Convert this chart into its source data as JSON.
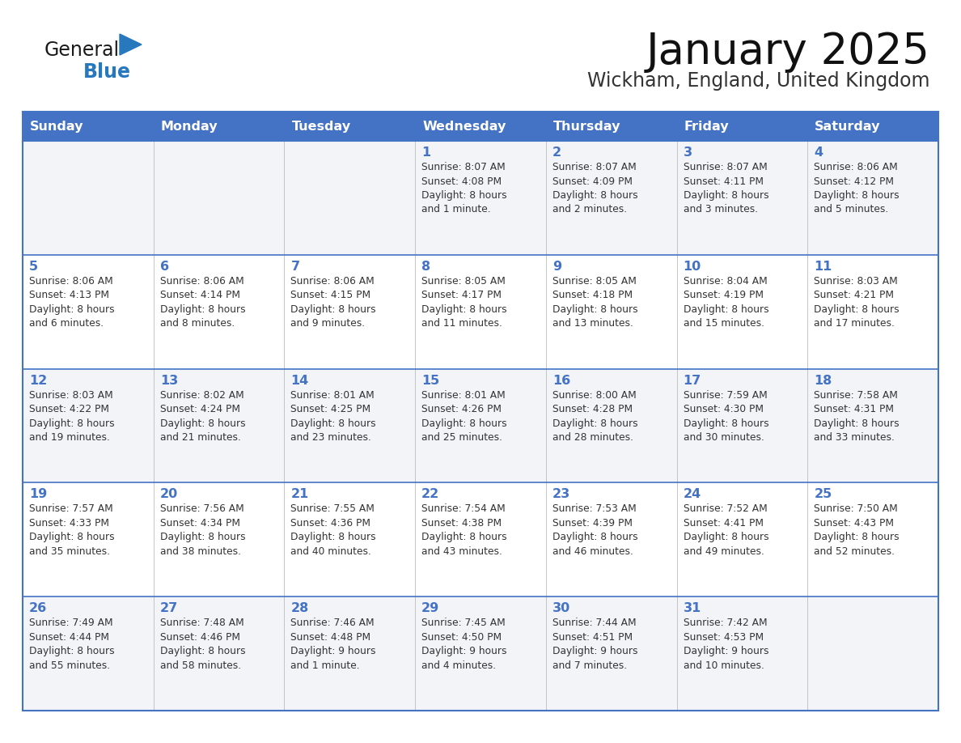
{
  "title": "January 2025",
  "subtitle": "Wickham, England, United Kingdom",
  "days_of_week": [
    "Sunday",
    "Monday",
    "Tuesday",
    "Wednesday",
    "Thursday",
    "Friday",
    "Saturday"
  ],
  "header_bg": "#4472C4",
  "header_text": "#FFFFFF",
  "cell_bg_light": "#F2F4F8",
  "cell_bg_white": "#FFFFFF",
  "day_number_color": "#4472C4",
  "cell_text_color": "#333333",
  "border_color": "#4472C4",
  "row_line_color": "#4472C4",
  "title_color": "#111111",
  "subtitle_color": "#333333",
  "logo_general_color": "#1a1a1a",
  "logo_blue_color": "#2878BE",
  "weeks": [
    [
      {
        "day": null,
        "info": null
      },
      {
        "day": null,
        "info": null
      },
      {
        "day": null,
        "info": null
      },
      {
        "day": 1,
        "info": "Sunrise: 8:07 AM\nSunset: 4:08 PM\nDaylight: 8 hours\nand 1 minute."
      },
      {
        "day": 2,
        "info": "Sunrise: 8:07 AM\nSunset: 4:09 PM\nDaylight: 8 hours\nand 2 minutes."
      },
      {
        "day": 3,
        "info": "Sunrise: 8:07 AM\nSunset: 4:11 PM\nDaylight: 8 hours\nand 3 minutes."
      },
      {
        "day": 4,
        "info": "Sunrise: 8:06 AM\nSunset: 4:12 PM\nDaylight: 8 hours\nand 5 minutes."
      }
    ],
    [
      {
        "day": 5,
        "info": "Sunrise: 8:06 AM\nSunset: 4:13 PM\nDaylight: 8 hours\nand 6 minutes."
      },
      {
        "day": 6,
        "info": "Sunrise: 8:06 AM\nSunset: 4:14 PM\nDaylight: 8 hours\nand 8 minutes."
      },
      {
        "day": 7,
        "info": "Sunrise: 8:06 AM\nSunset: 4:15 PM\nDaylight: 8 hours\nand 9 minutes."
      },
      {
        "day": 8,
        "info": "Sunrise: 8:05 AM\nSunset: 4:17 PM\nDaylight: 8 hours\nand 11 minutes."
      },
      {
        "day": 9,
        "info": "Sunrise: 8:05 AM\nSunset: 4:18 PM\nDaylight: 8 hours\nand 13 minutes."
      },
      {
        "day": 10,
        "info": "Sunrise: 8:04 AM\nSunset: 4:19 PM\nDaylight: 8 hours\nand 15 minutes."
      },
      {
        "day": 11,
        "info": "Sunrise: 8:03 AM\nSunset: 4:21 PM\nDaylight: 8 hours\nand 17 minutes."
      }
    ],
    [
      {
        "day": 12,
        "info": "Sunrise: 8:03 AM\nSunset: 4:22 PM\nDaylight: 8 hours\nand 19 minutes."
      },
      {
        "day": 13,
        "info": "Sunrise: 8:02 AM\nSunset: 4:24 PM\nDaylight: 8 hours\nand 21 minutes."
      },
      {
        "day": 14,
        "info": "Sunrise: 8:01 AM\nSunset: 4:25 PM\nDaylight: 8 hours\nand 23 minutes."
      },
      {
        "day": 15,
        "info": "Sunrise: 8:01 AM\nSunset: 4:26 PM\nDaylight: 8 hours\nand 25 minutes."
      },
      {
        "day": 16,
        "info": "Sunrise: 8:00 AM\nSunset: 4:28 PM\nDaylight: 8 hours\nand 28 minutes."
      },
      {
        "day": 17,
        "info": "Sunrise: 7:59 AM\nSunset: 4:30 PM\nDaylight: 8 hours\nand 30 minutes."
      },
      {
        "day": 18,
        "info": "Sunrise: 7:58 AM\nSunset: 4:31 PM\nDaylight: 8 hours\nand 33 minutes."
      }
    ],
    [
      {
        "day": 19,
        "info": "Sunrise: 7:57 AM\nSunset: 4:33 PM\nDaylight: 8 hours\nand 35 minutes."
      },
      {
        "day": 20,
        "info": "Sunrise: 7:56 AM\nSunset: 4:34 PM\nDaylight: 8 hours\nand 38 minutes."
      },
      {
        "day": 21,
        "info": "Sunrise: 7:55 AM\nSunset: 4:36 PM\nDaylight: 8 hours\nand 40 minutes."
      },
      {
        "day": 22,
        "info": "Sunrise: 7:54 AM\nSunset: 4:38 PM\nDaylight: 8 hours\nand 43 minutes."
      },
      {
        "day": 23,
        "info": "Sunrise: 7:53 AM\nSunset: 4:39 PM\nDaylight: 8 hours\nand 46 minutes."
      },
      {
        "day": 24,
        "info": "Sunrise: 7:52 AM\nSunset: 4:41 PM\nDaylight: 8 hours\nand 49 minutes."
      },
      {
        "day": 25,
        "info": "Sunrise: 7:50 AM\nSunset: 4:43 PM\nDaylight: 8 hours\nand 52 minutes."
      }
    ],
    [
      {
        "day": 26,
        "info": "Sunrise: 7:49 AM\nSunset: 4:44 PM\nDaylight: 8 hours\nand 55 minutes."
      },
      {
        "day": 27,
        "info": "Sunrise: 7:48 AM\nSunset: 4:46 PM\nDaylight: 8 hours\nand 58 minutes."
      },
      {
        "day": 28,
        "info": "Sunrise: 7:46 AM\nSunset: 4:48 PM\nDaylight: 9 hours\nand 1 minute."
      },
      {
        "day": 29,
        "info": "Sunrise: 7:45 AM\nSunset: 4:50 PM\nDaylight: 9 hours\nand 4 minutes."
      },
      {
        "day": 30,
        "info": "Sunrise: 7:44 AM\nSunset: 4:51 PM\nDaylight: 9 hours\nand 7 minutes."
      },
      {
        "day": 31,
        "info": "Sunrise: 7:42 AM\nSunset: 4:53 PM\nDaylight: 9 hours\nand 10 minutes."
      },
      {
        "day": null,
        "info": null
      }
    ]
  ]
}
